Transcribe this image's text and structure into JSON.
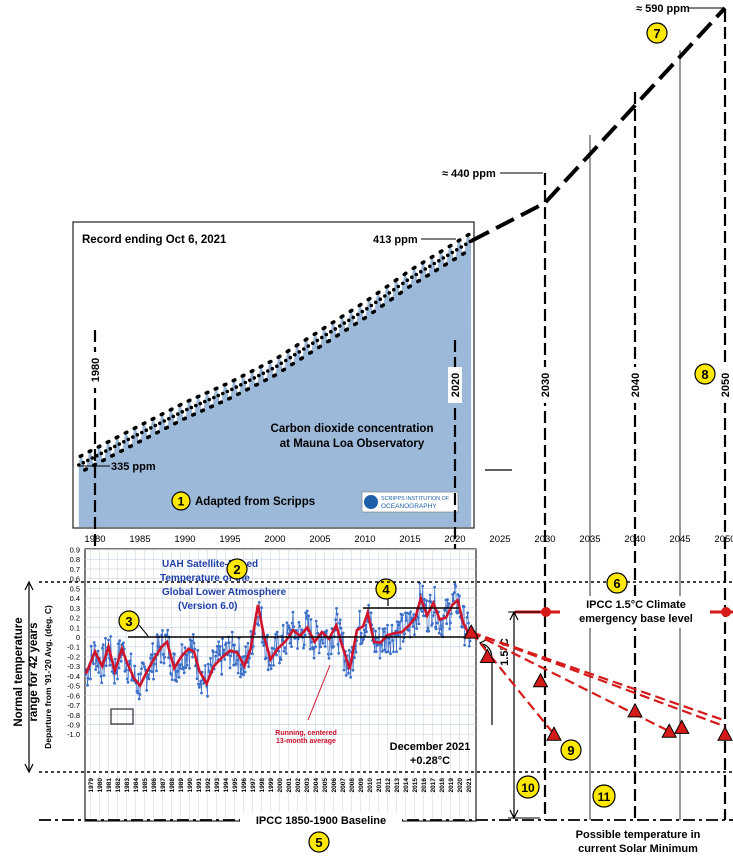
{
  "chart_data": [
    {
      "type": "scatter",
      "panel": "co2",
      "title": "Carbon dioxide concentration at Mauna Loa Observatory",
      "annotations": {
        "record": "Record ending Oct 6, 2021",
        "adapted": "Adapted from Scripps",
        "logo": "SCRIPPS INSTITUTION OF OCEANOGRAPHY",
        "co2_start": "335 ppm",
        "co2_end": "413 ppm",
        "co2_2030": "≈ 440 ppm",
        "co2_2050": "≈ 590 ppm"
      },
      "x_ticks": [
        "1980",
        "1985",
        "1990",
        "1995",
        "2000",
        "2005",
        "2010",
        "2015",
        "2020",
        "2025",
        "2030",
        "2035",
        "2040",
        "2045",
        "2050"
      ],
      "projection_years": [
        "1980",
        "2020",
        "2030",
        "2040",
        "2050"
      ],
      "trend": {
        "x": [
          1978.2,
          1985,
          1990,
          1995,
          2000,
          2005,
          2010,
          2015,
          2021.8
        ],
        "y": [
          335,
          346,
          354,
          361,
          369,
          379,
          389,
          400,
          413
        ]
      },
      "projection": {
        "x": [
          2021.8,
          2030,
          2050
        ],
        "y": [
          413,
          440,
          590
        ]
      },
      "seasonal_amplitude": 3.2
    },
    {
      "type": "line",
      "panel": "temperature",
      "title": "UAH Satellite-Based Temperature of the Global Lower Atmosphere (Version 6.0)",
      "ylabel": "Departure from '91-'20 Avg. (deg. C)",
      "outer_ylabel": "Normal temperature range for 42 years",
      "y_ticks": [
        "0.9",
        "0.8",
        "0.7",
        "0.6",
        "0.5",
        "0.4",
        "0.3",
        "0.2",
        "0.1",
        "0",
        "-0.1",
        "-0.2",
        "-0.3",
        "-0.4",
        "-0.5",
        "-0.6",
        "-0.7",
        "-0.8",
        "-0.9",
        "-1.0"
      ],
      "x_year_labels": [
        "1979",
        "1980",
        "1981",
        "1982",
        "1983",
        "1984",
        "1985",
        "1986",
        "1987",
        "1988",
        "1989",
        "1990",
        "1991",
        "1992",
        "1993",
        "1994",
        "1995",
        "1996",
        "1997",
        "1998",
        "1999",
        "2000",
        "2001",
        "2002",
        "2003",
        "2004",
        "2005",
        "2006",
        "2007",
        "2008",
        "2009",
        "2010",
        "2011",
        "2012",
        "2013",
        "2014",
        "2015",
        "2016",
        "2017",
        "2018",
        "2019",
        "2020",
        "2021"
      ],
      "running_average_label": "Running, centered 13-month average",
      "running_average": {
        "x": [
          1979.0,
          1980.0,
          1980.8,
          1981.5,
          1982.2,
          1983.0,
          1983.5,
          1984.3,
          1985.0,
          1985.8,
          1986.6,
          1987.4,
          1988.0,
          1988.8,
          1989.6,
          1990.4,
          1991.0,
          1991.6,
          1992.4,
          1993.2,
          1994.0,
          1995.0,
          1995.8,
          1996.6,
          1997.3,
          1998.1,
          1998.8,
          1999.5,
          2000.3,
          2001.2,
          2002.0,
          2002.8,
          2003.6,
          2004.4,
          2005.2,
          2006.0,
          2006.8,
          2007.5,
          2008.3,
          2009.1,
          2009.8,
          2010.3,
          2011.0,
          2011.7,
          2012.5,
          2013.3,
          2014.1,
          2014.9,
          2015.6,
          2016.2,
          2016.9,
          2017.6,
          2018.3,
          2019.0,
          2019.7,
          2020.3,
          2020.9,
          2021.6
        ],
        "y": [
          -0.38,
          -0.15,
          -0.3,
          -0.1,
          -0.35,
          -0.12,
          -0.25,
          -0.42,
          -0.5,
          -0.35,
          -0.22,
          -0.1,
          -0.05,
          -0.32,
          -0.2,
          -0.12,
          -0.15,
          -0.35,
          -0.48,
          -0.3,
          -0.22,
          -0.14,
          -0.16,
          -0.3,
          -0.12,
          0.33,
          0.0,
          -0.23,
          -0.12,
          -0.04,
          0.07,
          0.01,
          0.1,
          -0.05,
          0.05,
          -0.02,
          0.12,
          -0.1,
          -0.33,
          0.07,
          0.11,
          0.25,
          -0.05,
          -0.06,
          0.02,
          0.04,
          0.05,
          0.12,
          0.2,
          0.4,
          0.22,
          0.35,
          0.18,
          0.2,
          0.33,
          0.38,
          0.15,
          0.02
        ]
      },
      "scatter_amplitude": 0.2
    }
  ],
  "callouts": {
    "c1": "1",
    "c2": "2",
    "c3": "3",
    "c4": "4",
    "c5": "5",
    "c6": "6",
    "c7": "7",
    "c8": "8",
    "c9": "9",
    "c10": "10",
    "c11": "11"
  },
  "labels": {
    "ipcc15_line1": "IPCC 1.5°C Climate",
    "ipcc15_line2": "emergency base level",
    "baseline": "IPCC 1850-1900 Baseline",
    "dec2021_line1": "December 2021",
    "dec2021_line2": "+0.28°C",
    "delta15": "1.5°C",
    "solar_line1": "Possible temperature in",
    "solar_line2": "current Solar Minimum"
  },
  "decline_markers": {
    "x": [
      2021.8,
      2023.6,
      2029.5,
      2031.0,
      2040.0,
      2043.8,
      2045.2,
      2050.0
    ],
    "y": [
      0.05,
      -0.2,
      -0.45,
      -1.0,
      -0.76,
      -0.97,
      -0.93,
      -1.0
    ]
  },
  "colors": {
    "co2_fill": "#9cb9d9",
    "series_blue": "#3c6fc8",
    "running_red": "#d0142c",
    "callout_yellow": "#ffe800",
    "marker_red": "#d61a1a",
    "grid": "#c9d3e3"
  }
}
